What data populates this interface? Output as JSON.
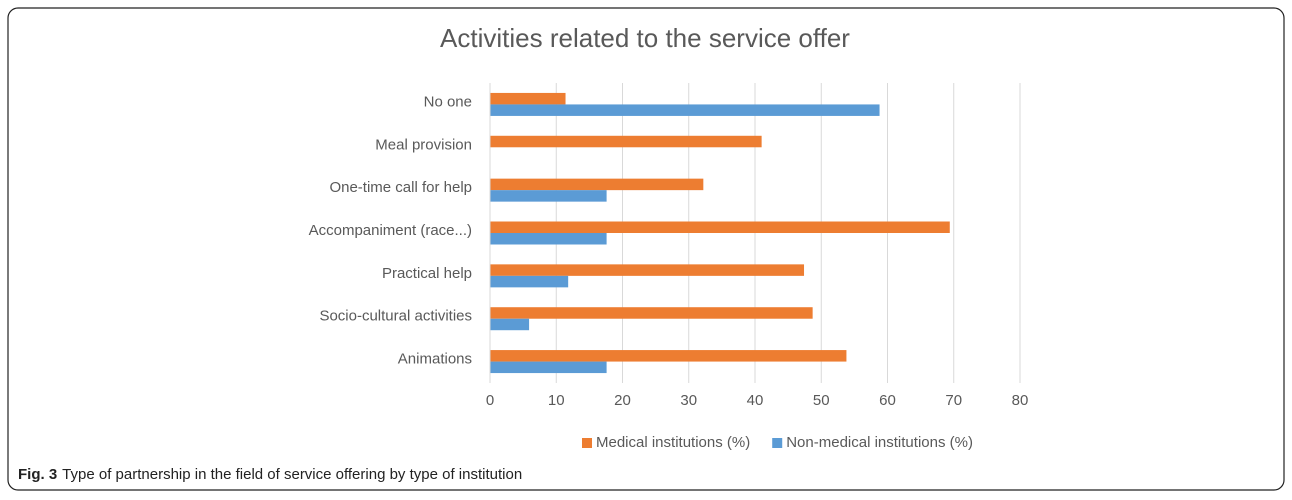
{
  "chart_data": {
    "type": "hbar",
    "title": "Activities related to the service offer",
    "categories": [
      "No one",
      "Meal provision",
      "One-time call for help",
      "Accompaniment (race...)",
      "Practical help",
      "Socio-cultural activities",
      "Animations"
    ],
    "series": [
      {
        "name": "Medical institutions (%)",
        "color": "#ed7d31",
        "values": [
          11.4,
          41,
          32.2,
          69.4,
          47.4,
          48.7,
          53.8
        ]
      },
      {
        "name": "Non-medical institutions (%)",
        "color": "#5b9bd5",
        "values": [
          58.8,
          0,
          17.6,
          17.6,
          11.8,
          5.9,
          17.6
        ]
      }
    ],
    "xlim": [
      0,
      80
    ],
    "xticks": [
      0,
      10,
      20,
      30,
      40,
      50,
      60,
      70,
      80
    ],
    "grid": true,
    "legend": "bottom"
  },
  "caption": {
    "label": "Fig. 3",
    "text": "Type of partnership in the field of service offering by type of institution"
  }
}
